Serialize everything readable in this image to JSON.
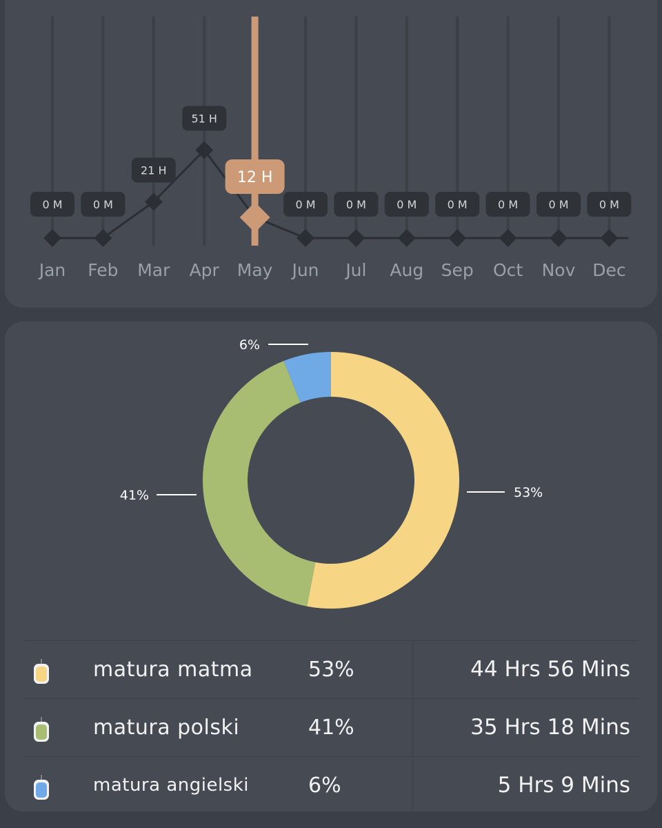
{
  "colors": {
    "background": "#3a3f48",
    "card": "#454a53",
    "grid": "#3b4047",
    "line": "#2b2f35",
    "badge": "#2f3338",
    "highlight": "#cc9a77",
    "month_label": "#9aa0a8"
  },
  "chart_data": [
    {
      "type": "line",
      "categories": [
        "Jan",
        "Feb",
        "Mar",
        "Apr",
        "May",
        "Jun",
        "Jul",
        "Aug",
        "Sep",
        "Oct",
        "Nov",
        "Dec"
      ],
      "values_hours": [
        0,
        0,
        21,
        51,
        12,
        0,
        0,
        0,
        0,
        0,
        0,
        0
      ],
      "labels": [
        "0 M",
        "0 M",
        "21 H",
        "51 H",
        "12 H",
        "0 M",
        "0 M",
        "0 M",
        "0 M",
        "0 M",
        "0 M",
        "0 M"
      ],
      "selected_index": 4,
      "grid": true
    },
    {
      "type": "pie",
      "style": "donut",
      "labels": [
        "matura matma",
        "matura polski",
        "matura angielski"
      ],
      "values": [
        53,
        41,
        6
      ],
      "value_labels": [
        "53%",
        "41%",
        "6%"
      ],
      "durations": [
        "44 Hrs 56 Mins",
        "35 Hrs 18 Mins",
        "5 Hrs 9 Mins"
      ],
      "colors": [
        "#f6d585",
        "#a8bc72",
        "#6faae6"
      ]
    }
  ]
}
